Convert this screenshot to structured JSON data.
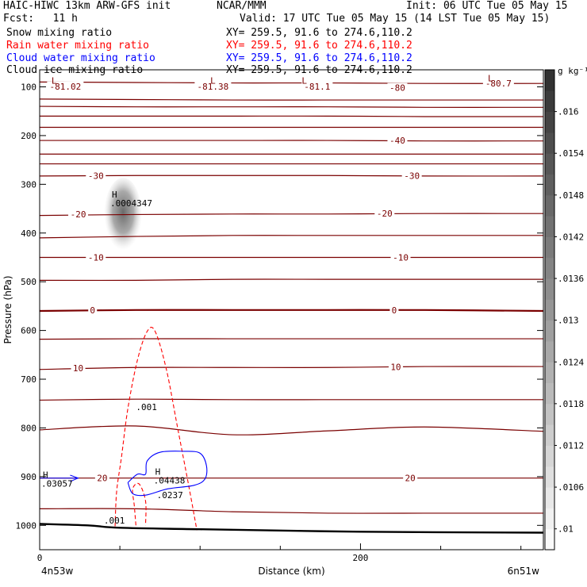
{
  "header": {
    "title_left": "HAIC-HIWC 13km ARW-GFS init",
    "title_center": "NCAR/MMM",
    "init": "Init: 06 UTC Tue 05 May 15",
    "fcst": "Fcst:   11 h",
    "valid": "Valid: 17 UTC Tue 05 May 15 (14 LST Tue 05 May 15)"
  },
  "fields": [
    {
      "name": "Snow mixing ratio",
      "xy": "XY= 259.5, 91.6 to 274.6,110.2",
      "color": "#000000"
    },
    {
      "name": "Rain water mixing ratio",
      "xy": "XY= 259.5, 91.6 to 274.6,110.2",
      "color": "#ff0000"
    },
    {
      "name": "Cloud water mixing ratio",
      "xy": "XY= 259.5, 91.6 to 274.6,110.2",
      "color": "#0000ff"
    },
    {
      "name": "Cloud ice mixing ratio",
      "xy": "XY= 259.5, 91.6 to 274.6,110.2",
      "color": "#000000"
    }
  ],
  "chart_data": {
    "type": "cross-section",
    "xlabel": "Distance (km)",
    "ylabel": "Pressure (hPa)",
    "xlim": [
      0,
      314
    ],
    "ylim": [
      1050,
      65
    ],
    "xticks": [
      0,
      200
    ],
    "yticks": [
      100,
      200,
      300,
      400,
      500,
      600,
      700,
      800,
      900,
      1000
    ],
    "endpoints": {
      "left": "4n53w",
      "right": "6n51w"
    },
    "colorbar": {
      "unit": "g kg⁻¹",
      "ticks": [
        ".01",
        ".0106",
        ".0112",
        ".0118",
        ".0124",
        ".013",
        ".0136",
        ".0142",
        ".0148",
        ".0154",
        ".016"
      ],
      "min": 0.0097,
      "max": 0.0166,
      "levels": 23
    },
    "temperature_contours": [
      {
        "label": "-80",
        "p": [
          90,
          91,
          92,
          92,
          93,
          93
        ]
      },
      {
        "label": "",
        "p": [
          125,
          126,
          127,
          127,
          127,
          127
        ]
      },
      {
        "label": "",
        "p": [
          140,
          141,
          141,
          141,
          142,
          142
        ]
      },
      {
        "label": "",
        "p": [
          160,
          160,
          160,
          160,
          161,
          161
        ]
      },
      {
        "label": "",
        "p": [
          183,
          183,
          183,
          183,
          183,
          183
        ]
      },
      {
        "label": "-40",
        "p": [
          210,
          210,
          210,
          210,
          211,
          211
        ]
      },
      {
        "label": "",
        "p": [
          238,
          238,
          238,
          238,
          238,
          238
        ]
      },
      {
        "label": "",
        "p": [
          258,
          258,
          258,
          258,
          258,
          258
        ]
      },
      {
        "label": "-30",
        "p": [
          283,
          282,
          282,
          282,
          283,
          283
        ]
      },
      {
        "label": "-20",
        "p": [
          364,
          362,
          361,
          361,
          360,
          360
        ]
      },
      {
        "label": "",
        "p": [
          410,
          407,
          405,
          405,
          405,
          405
        ]
      },
      {
        "label": "-10",
        "p": [
          450,
          450,
          450,
          450,
          450,
          450
        ]
      },
      {
        "label": "",
        "p": [
          497,
          497,
          495,
          495,
          495,
          495
        ]
      },
      {
        "label": "0",
        "p": [
          560,
          558,
          558,
          558,
          558,
          560
        ],
        "bold": true
      },
      {
        "label": "",
        "p": [
          618,
          617,
          617,
          617,
          617,
          617
        ]
      },
      {
        "label": "10",
        "p": [
          680,
          676,
          676,
          676,
          674,
          674
        ]
      },
      {
        "label": "",
        "p": [
          743,
          741,
          742,
          742,
          742,
          742
        ]
      },
      {
        "label": "",
        "p": [
          804,
          796,
          814,
          806,
          798,
          807
        ]
      },
      {
        "label": "20",
        "p": [
          903,
          903,
          903,
          903,
          903,
          903
        ]
      },
      {
        "label": "",
        "p": [
          966,
          966,
          972,
          975,
          975,
          975
        ]
      }
    ],
    "contour_x": [
      0,
      60,
      120,
      180,
      240,
      314
    ],
    "labels": [
      {
        "text": "-81.02",
        "x": 16,
        "p": 99
      },
      {
        "text": "-81.38",
        "x": 108,
        "p": 99
      },
      {
        "text": "-81.1",
        "x": 173,
        "p": 99
      },
      {
        "text": "-80",
        "x": 223,
        "p": 102
      },
      {
        "text": "-80.7",
        "x": 286,
        "p": 93
      },
      {
        "text": "-40",
        "x": 223,
        "p": 210
      },
      {
        "text": "-30",
        "x": 35,
        "p": 282
      },
      {
        "text": "-30",
        "x": 232,
        "p": 282
      },
      {
        "text": "-20",
        "x": 24,
        "p": 361
      },
      {
        "text": "-20",
        "x": 215,
        "p": 360
      },
      {
        "text": "-10",
        "x": 35,
        "p": 450
      },
      {
        "text": "-10",
        "x": 225,
        "p": 450
      },
      {
        "text": "0",
        "x": 33,
        "p": 558
      },
      {
        "text": "0",
        "x": 221,
        "p": 558
      },
      {
        "text": "10",
        "x": 24,
        "p": 677
      },
      {
        "text": "10",
        "x": 222,
        "p": 675
      },
      {
        "text": "20",
        "x": 39,
        "p": 903
      },
      {
        "text": "20",
        "x": 231,
        "p": 903
      }
    ],
    "lows": [
      {
        "text": "L",
        "x": 9,
        "p": 87
      },
      {
        "text": "L",
        "x": 108,
        "p": 87
      },
      {
        "text": "L",
        "x": 165,
        "p": 87
      },
      {
        "text": "L",
        "x": 281,
        "p": 82
      }
    ],
    "highs": [
      {
        "text": "H",
        "value": ".0004347",
        "x": 45,
        "p": 327,
        "color": "#000000"
      },
      {
        "text": "H",
        "value": ".03057",
        "x": 2,
        "p": 903,
        "color": "#0000ff"
      },
      {
        "text": "H",
        "value": ".04438",
        "x": 72,
        "p": 896,
        "color": "#0000ff"
      },
      {
        "text": "",
        "value": ".0237",
        "x": 74,
        "p": 926,
        "color": "#ff0000"
      }
    ],
    "rain_labels": [
      {
        "text": ".001",
        "x": 60,
        "p": 757
      },
      {
        "text": ".001",
        "x": 40,
        "p": 990
      }
    ],
    "ice_blob": {
      "x": 52,
      "p": 365
    }
  }
}
